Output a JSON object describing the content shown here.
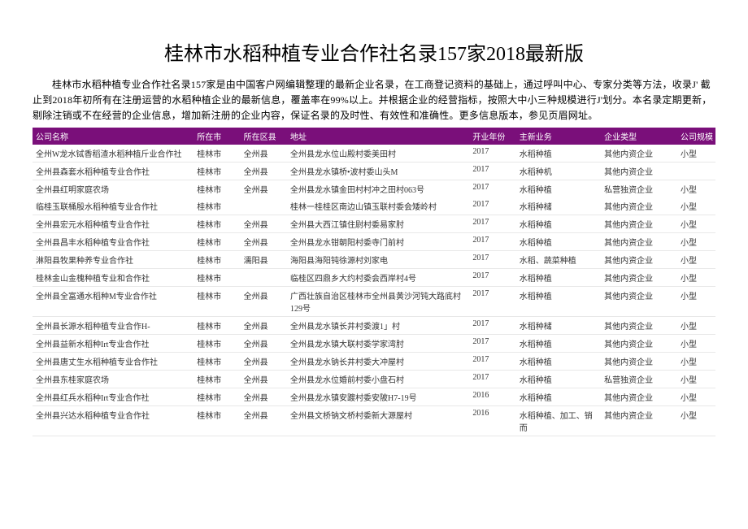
{
  "title": "桂林市水稻种植专业合作社名录157家2018最新版",
  "intro": "桂林市水稻种植专业合作社名录157家是由中国客户网编辑整理的最新企业名录，在工商登记资料的基础上，通过呼叫中心、专家分类等方法，收录J' 截止到2018年初所有在注册运营的水稻种植企业的最新信息，覆盖率在99%以上。并根据企业的经营指标，按照大中小三种规模进行J'划分。本名录定期更新，剔除注销或不在经营的企业信息，增加新注册的企业内容，保证名录的及时性、有效性和准确性。更多信息版本，参见页眉网址。",
  "columns": [
    "公司名称",
    "所在市",
    "所在区县",
    "地址",
    "开业年份",
    "主新业务",
    "企业类型",
    "公司规模"
  ],
  "rows": [
    {
      "name": "全州W龙水铽香稻渣水稻种植斤业合作社",
      "city": "桂林市",
      "county": "全州县",
      "addr": "全州县龙水位山殿村委美田村",
      "year": "2017",
      "biz": "水稻种植",
      "type": "其他内资企业",
      "scale": "小型"
    },
    {
      "name": "全州县森套水稻种植专业合作社",
      "city": "桂林市",
      "county": "全州县",
      "addr": "全州县龙水镇桥•波村委山头M",
      "year": "2017",
      "biz": "水稻种机",
      "type": "其他内资企业",
      "scale": ""
    },
    {
      "name": "全州县红明家庭农场",
      "city": "桂林市",
      "county": "全州县",
      "addr": "全州县龙水镇金田村村冲之田村063号",
      "year": "2017",
      "biz": "水稻种植",
      "type": "私营独资企业",
      "scale": "小型",
      "noborder": true
    },
    {
      "name": "临桂玉联桶殷水稻种植专业合作社",
      "city": "桂林市",
      "county": "",
      "addr": "桂林一桂桂区南边山镇玉联村委会矮岭村",
      "year": "2017",
      "biz": "水稻种槠",
      "type": "其他内资企业",
      "scale": "小型"
    },
    {
      "name": "全州县宏元水稻种植专业合作社",
      "city": "桂林市",
      "county": "全州县",
      "addr": "全州县大西江镇住尉村委易家肘",
      "year": "2017",
      "biz": "水稻种植",
      "type": "其他内资企业",
      "scale": "小型"
    },
    {
      "name": "全州县昌丰水稻种植专业合作社",
      "city": "桂林市",
      "county": "全州县",
      "addr": "全州县龙水钳朝阳村委寺门前村",
      "year": "2017",
      "biz": "水稻种植",
      "type": "其他内资企业",
      "scale": "小型"
    },
    {
      "name": "淋阳县牧果种养专业合作社",
      "city": "桂林市",
      "county": "濡阳县",
      "addr": "海阳县海阳钝徐源村刘家电",
      "year": "2017",
      "biz": "水稻、蔬菜种植",
      "type": "其他内资企业",
      "scale": "小型"
    },
    {
      "name": "桂林金山金槐种植专业和合作社",
      "city": "桂林市",
      "county": "",
      "addr": "临桂区四鼎乡大约村委会西岸村4号",
      "year": "2017",
      "biz": "水稻种植",
      "type": "其他内资企业",
      "scale": "小型"
    },
    {
      "name": "全州县全富通水稻种M专业合作社",
      "city": "桂林市",
      "county": "全州县",
      "addr": "广西壮族自治区桂林市全州县黄沙河钝大路底村129号",
      "year": "2017",
      "biz": "水稻种植",
      "type": "其他内资企业",
      "scale": "小型"
    },
    {
      "name": "全州县长源水稻种植专业合作H-",
      "city": "桂林市",
      "county": "全州县",
      "addr": "全州县龙水镇长井村委渡1」村",
      "year": "2017",
      "biz": "水稻种槠",
      "type": "其他内资企业",
      "scale": "小型"
    },
    {
      "name": "全州县益新水稻种Irt专业合作社",
      "city": "桂林市",
      "county": "全州县",
      "addr": "全州县龙水镇大联村委学家湾肘",
      "year": "2017",
      "biz": "水稻种植",
      "type": "其他内资企业",
      "scale": "小型"
    },
    {
      "name": "全州县唐丈生水稻种植专业合作社",
      "city": "桂林市",
      "county": "全州县",
      "addr": "全州县龙水钠长井村委大冲屋村",
      "year": "2017",
      "biz": "水稻种植",
      "type": "其他内资企业",
      "scale": "小型"
    },
    {
      "name": "全州县东桂家庭农场",
      "city": "桂林市",
      "county": "全州县",
      "addr": "全州县龙水位婚前村委小盘石村",
      "year": "2017",
      "biz": "水稻种植",
      "type": "私营独资企业",
      "scale": "小型"
    },
    {
      "name": "全州县红兵水稻种Irt专业合作社",
      "city": "桂林市",
      "county": "全州县",
      "addr": "全州县龙水镇安踱村委安陂H7-19号",
      "year": "2016",
      "biz": "水稻种植",
      "type": "其他内资企业",
      "scale": "小型"
    },
    {
      "name": "全州县兴达水稻种植专业合作社",
      "city": "桂林市",
      "county": "全州县",
      "addr": "全州县文桥钠文桥村委新大源屋村",
      "year": "2016",
      "biz": "水稻种植、加工、销而",
      "type": "其他内资企业",
      "scale": "小型"
    }
  ],
  "style": {
    "header_bg": "#7a0f7a",
    "header_fg": "#ffffff",
    "row_border": "#e8e8e8",
    "title_fontsize": 24,
    "body_fontsize": 10,
    "intro_fontsize": 12
  }
}
